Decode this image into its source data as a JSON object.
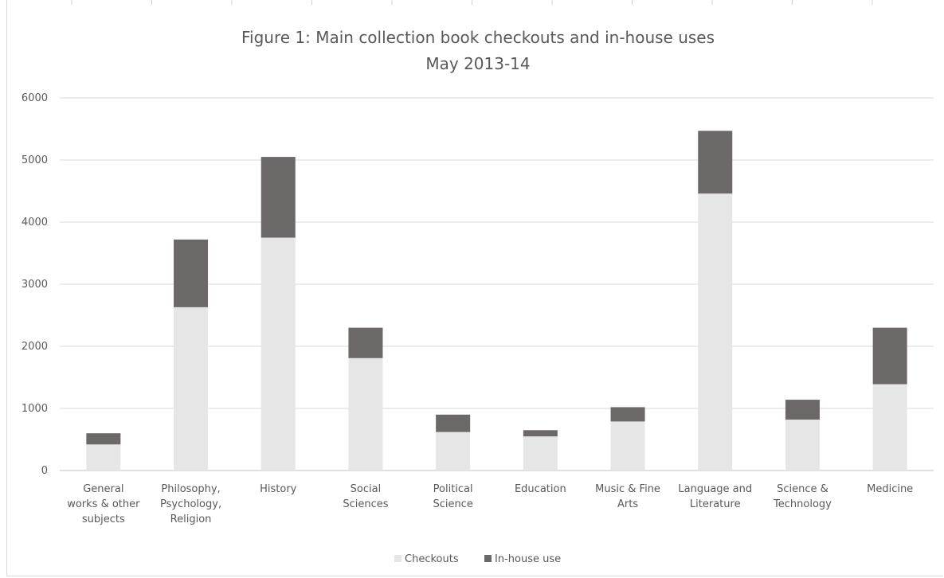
{
  "chart_data": {
    "type": "bar",
    "stacked": true,
    "title": "Figure 1:  Main collection book checkouts and in-house uses",
    "subtitle": "May 2013-14",
    "categories": [
      [
        "General",
        "works & other",
        "subjects"
      ],
      [
        "Philosophy,",
        "Psychology,",
        "Religion"
      ],
      [
        "History"
      ],
      [
        "Social",
        "Sciences"
      ],
      [
        "Political",
        "Science"
      ],
      [
        "Education"
      ],
      [
        "Music & Fine",
        "Arts"
      ],
      [
        "Language and",
        "Literature"
      ],
      [
        "Science &",
        "Technology"
      ],
      [
        "Medicine"
      ]
    ],
    "series": [
      {
        "name": "Checkouts",
        "color": "#e6e6e6",
        "values": [
          420,
          2630,
          3750,
          1810,
          620,
          550,
          790,
          4460,
          820,
          1390
        ]
      },
      {
        "name": "In-house use",
        "color": "#6d6868",
        "values": [
          180,
          1090,
          1300,
          490,
          280,
          100,
          230,
          1010,
          320,
          910
        ]
      }
    ],
    "ylim": [
      0,
      6000
    ],
    "yticks": [
      "0",
      "1000",
      "2000",
      "3000",
      "4000",
      "5000",
      "6000"
    ],
    "grid": true,
    "legend_position": "bottom"
  }
}
